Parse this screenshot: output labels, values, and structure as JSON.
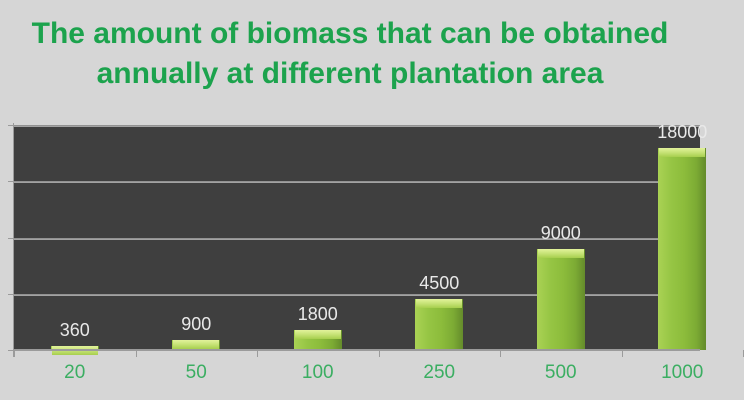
{
  "title": {
    "line1": "The amount of biomass that can be obtained",
    "line2": "annually at different plantation area"
  },
  "chart_data": {
    "type": "bar",
    "title": "The amount of biomass that can be obtained annually at different plantation area",
    "categories": [
      "20",
      "50",
      "100",
      "250",
      "500",
      "1000"
    ],
    "values": [
      360,
      900,
      1800,
      4500,
      9000,
      18000
    ],
    "data_labels": [
      "360",
      "900",
      "1800",
      "4500",
      "9000",
      "18000"
    ],
    "xlabel": "",
    "ylabel": "",
    "ylim": [
      0,
      20000
    ],
    "gridline_interval": 5000,
    "grid": true,
    "legend": false
  },
  "colors": {
    "page_bg": "#d6d6d6",
    "plot_bg": "#3f3f3f",
    "gridline": "#9b9b9b",
    "axis": "#9b9b9b",
    "title_green": "#1ca34d",
    "x_label_green": "#3bae62",
    "data_label": "#e9e9e9",
    "bar_main": "#8cbc3b",
    "bar_highlight": "#c9e47a",
    "bar_shadow": "#648b2b"
  }
}
